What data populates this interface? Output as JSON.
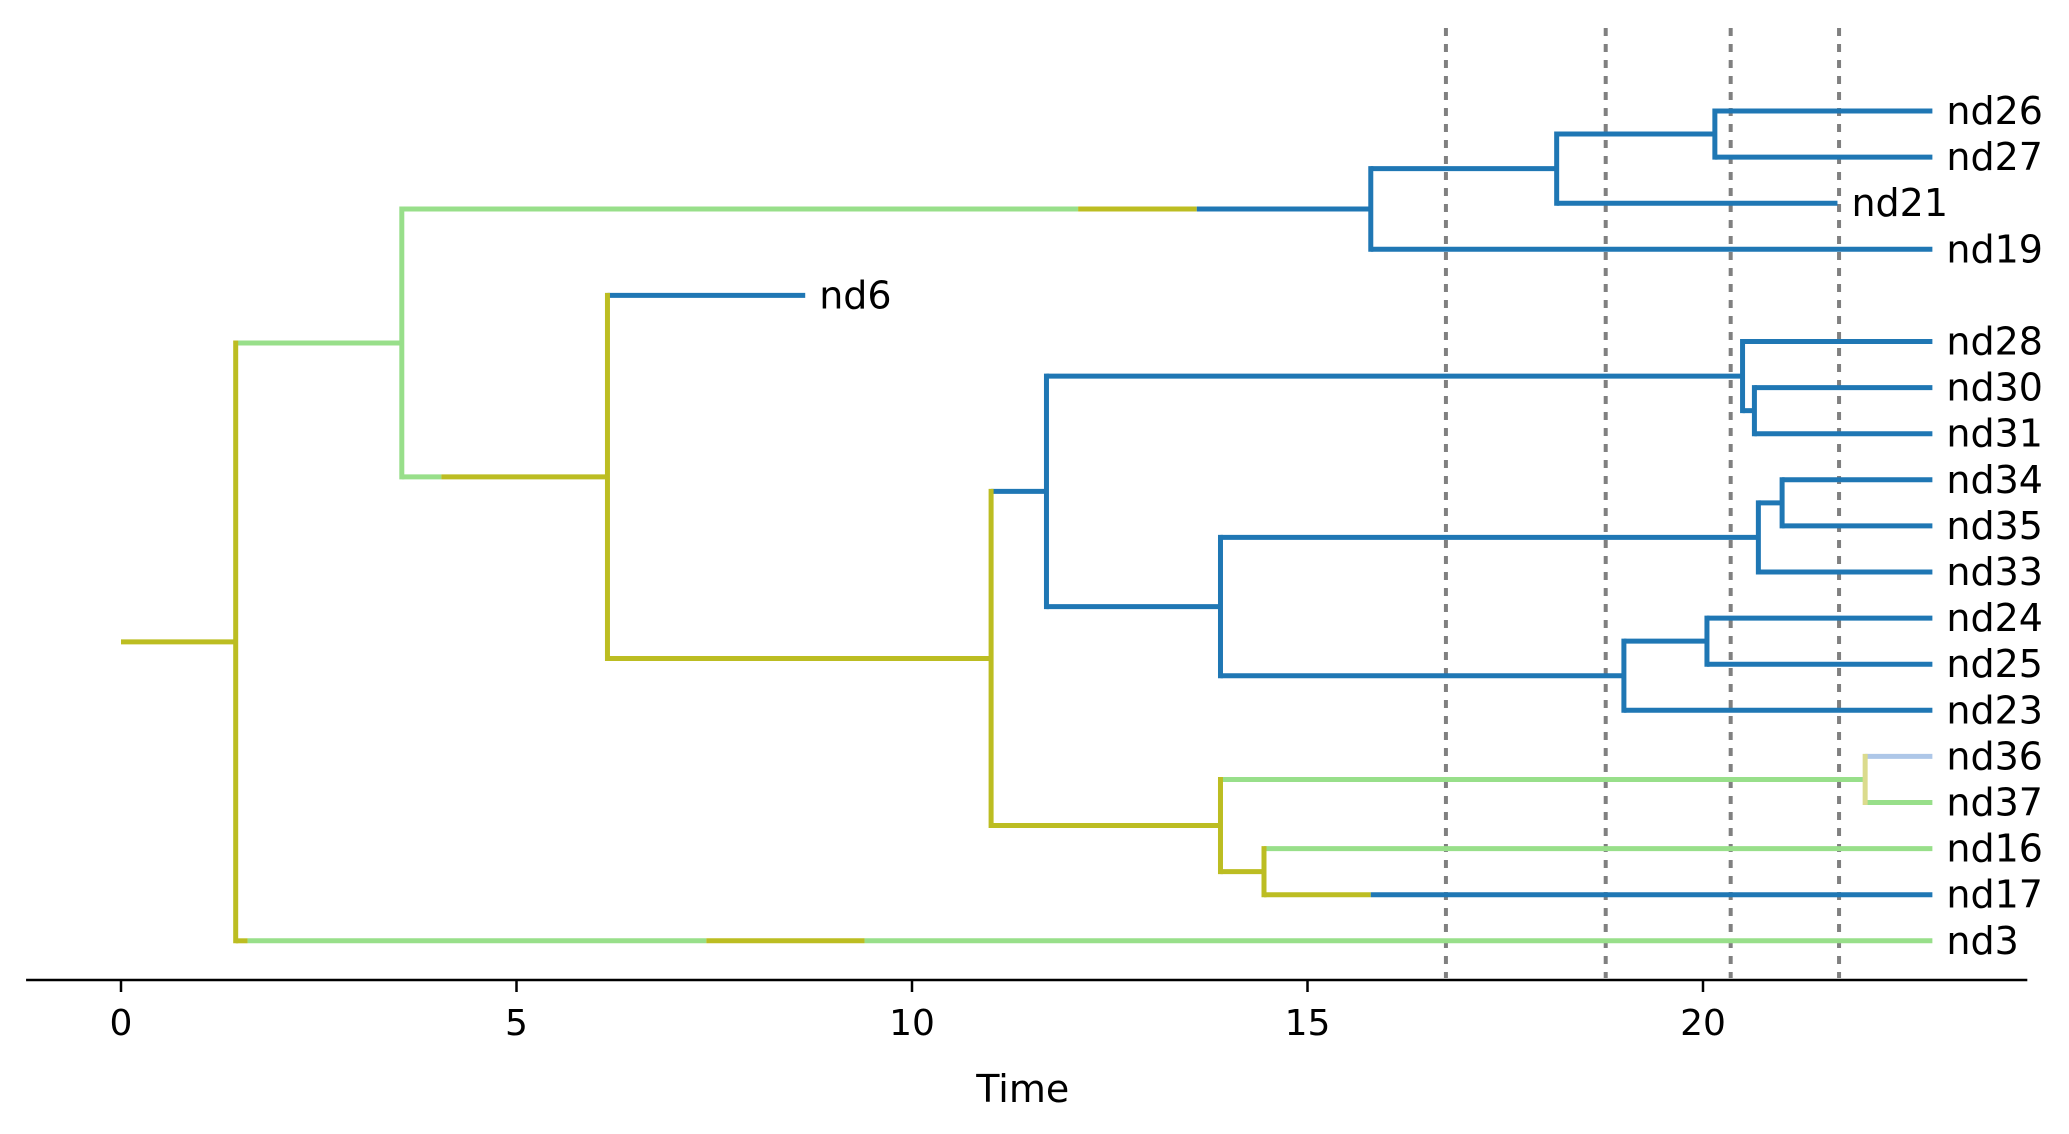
{
  "chart_data": {
    "type": "tree",
    "xlabel": "Time",
    "xlim": [
      -1.2,
      24.1
    ],
    "x_ticks": [
      0,
      5,
      10,
      15,
      20
    ],
    "x_tick_labels": [
      "0",
      "5",
      "10",
      "15",
      "20"
    ],
    "grid": false,
    "colors": {
      "olive": "#bcbd22",
      "light_green": "#98df8a",
      "blue": "#1f77b4",
      "light_blue": "#aec7e8",
      "pale_yellow": "#dbdb8d",
      "ref_line": "#808080"
    },
    "reference_lines": [
      16.75,
      18.77,
      20.35,
      21.72
    ],
    "leaf_order": [
      "nd26",
      "nd27",
      "nd21",
      "nd19",
      "nd6",
      "nd28",
      "nd30",
      "nd31",
      "nd34",
      "nd35",
      "nd33",
      "nd24",
      "nd25",
      "nd23",
      "nd36",
      "nd37",
      "nd16",
      "nd17",
      "nd3"
    ],
    "leaves": [
      {
        "label": "nd26",
        "time": 22.9
      },
      {
        "label": "nd27",
        "time": 22.9
      },
      {
        "label": "nd21",
        "time": 21.7
      },
      {
        "label": "nd19",
        "time": 22.9
      },
      {
        "label": "nd6",
        "time": 8.65
      },
      {
        "label": "nd28",
        "time": 22.9
      },
      {
        "label": "nd30",
        "time": 22.9
      },
      {
        "label": "nd31",
        "time": 22.9
      },
      {
        "label": "nd34",
        "time": 22.9
      },
      {
        "label": "nd35",
        "time": 22.9
      },
      {
        "label": "nd33",
        "time": 22.9
      },
      {
        "label": "nd24",
        "time": 22.9
      },
      {
        "label": "nd25",
        "time": 22.9
      },
      {
        "label": "nd23",
        "time": 22.9
      },
      {
        "label": "nd36",
        "time": 22.9
      },
      {
        "label": "nd37",
        "time": 22.9
      },
      {
        "label": "nd16",
        "time": 22.9
      },
      {
        "label": "nd17",
        "time": 22.9
      },
      {
        "label": "nd3",
        "time": 22.9
      }
    ],
    "nodes": [
      {
        "id": "A",
        "time": 1.45,
        "children": [
          "B",
          "nd3"
        ]
      },
      {
        "id": "B",
        "time": 3.55,
        "children": [
          "C",
          "D"
        ]
      },
      {
        "id": "C",
        "time": 15.8,
        "children": [
          "E",
          "nd19"
        ]
      },
      {
        "id": "E",
        "time": 18.15,
        "children": [
          "F",
          "nd21"
        ]
      },
      {
        "id": "F",
        "time": 20.15,
        "children": [
          "nd26",
          "nd27"
        ]
      },
      {
        "id": "D",
        "time": 6.15,
        "children": [
          "nd6",
          "G"
        ]
      },
      {
        "id": "G",
        "time": 11.0,
        "children": [
          "H",
          "N"
        ]
      },
      {
        "id": "H",
        "time": 11.7,
        "children": [
          "I",
          "K"
        ]
      },
      {
        "id": "I",
        "time": 20.5,
        "children": [
          "nd28",
          "J"
        ]
      },
      {
        "id": "J",
        "time": 20.65,
        "children": [
          "nd30",
          "nd31"
        ]
      },
      {
        "id": "K",
        "time": 13.9,
        "children": [
          "L",
          "M"
        ]
      },
      {
        "id": "L",
        "time": 20.7,
        "children": [
          "L2",
          "nd33"
        ]
      },
      {
        "id": "L2",
        "time": 21.0,
        "children": [
          "nd34",
          "nd35"
        ]
      },
      {
        "id": "M",
        "time": 19.0,
        "children": [
          "M2",
          "nd23"
        ]
      },
      {
        "id": "M2",
        "time": 20.05,
        "children": [
          "nd24",
          "nd25"
        ]
      },
      {
        "id": "N",
        "time": 13.9,
        "children": [
          "O",
          "P"
        ]
      },
      {
        "id": "O",
        "time": 22.05,
        "children": [
          "nd36",
          "nd37"
        ]
      },
      {
        "id": "P",
        "time": 14.45,
        "children": [
          "nd16",
          "nd17"
        ]
      }
    ],
    "root_stem": {
      "from": 0.0,
      "to": 1.45,
      "color": "olive"
    },
    "vertical_colors": {
      "A": "olive",
      "B": "light_green",
      "C": "blue",
      "E": "blue",
      "F": "blue",
      "D": "olive",
      "G": "olive",
      "H": "blue",
      "I": "blue",
      "J": "blue",
      "K": "blue",
      "L": "blue",
      "L2": "blue",
      "M": "blue",
      "M2": "blue",
      "N": "olive",
      "O": "pale_yellow",
      "P": "olive"
    },
    "branch_segments": {
      "B": [
        {
          "to": 3.55,
          "color": "light_green"
        }
      ],
      "nd3": [
        {
          "to": 1.6,
          "color": "olive"
        },
        {
          "to": 7.4,
          "color": "light_green"
        },
        {
          "to": 9.4,
          "color": "olive"
        },
        {
          "to": 22.9,
          "color": "light_green"
        }
      ],
      "C": [
        {
          "to": 12.1,
          "color": "light_green"
        },
        {
          "to": 13.6,
          "color": "olive"
        },
        {
          "to": 15.8,
          "color": "blue"
        }
      ],
      "D": [
        {
          "to": 4.05,
          "color": "light_green"
        },
        {
          "to": 6.15,
          "color": "olive"
        }
      ],
      "E": [
        {
          "to": 18.15,
          "color": "blue"
        }
      ],
      "nd19": [
        {
          "to": 22.9,
          "color": "blue"
        }
      ],
      "F": [
        {
          "to": 20.15,
          "color": "blue"
        }
      ],
      "nd21": [
        {
          "to": 21.7,
          "color": "blue"
        }
      ],
      "nd26": [
        {
          "to": 22.9,
          "color": "blue"
        }
      ],
      "nd27": [
        {
          "to": 22.9,
          "color": "blue"
        }
      ],
      "nd6": [
        {
          "to": 8.65,
          "color": "blue"
        }
      ],
      "G": [
        {
          "to": 11.0,
          "color": "olive"
        }
      ],
      "H": [
        {
          "to": 11.7,
          "color": "blue"
        }
      ],
      "N": [
        {
          "to": 13.9,
          "color": "olive"
        }
      ],
      "I": [
        {
          "to": 20.5,
          "color": "blue"
        }
      ],
      "K": [
        {
          "to": 13.9,
          "color": "blue"
        }
      ],
      "nd28": [
        {
          "to": 22.9,
          "color": "blue"
        }
      ],
      "J": [
        {
          "to": 20.65,
          "color": "blue"
        }
      ],
      "nd30": [
        {
          "to": 22.9,
          "color": "blue"
        }
      ],
      "nd31": [
        {
          "to": 22.9,
          "color": "blue"
        }
      ],
      "L": [
        {
          "to": 20.7,
          "color": "blue"
        }
      ],
      "M": [
        {
          "to": 19.0,
          "color": "blue"
        }
      ],
      "L2": [
        {
          "to": 21.0,
          "color": "blue"
        }
      ],
      "nd33": [
        {
          "to": 22.9,
          "color": "blue"
        }
      ],
      "nd34": [
        {
          "to": 22.9,
          "color": "blue"
        }
      ],
      "nd35": [
        {
          "to": 22.9,
          "color": "blue"
        }
      ],
      "M2": [
        {
          "to": 20.05,
          "color": "blue"
        }
      ],
      "nd23": [
        {
          "to": 22.9,
          "color": "blue"
        }
      ],
      "nd24": [
        {
          "to": 22.9,
          "color": "blue"
        }
      ],
      "nd25": [
        {
          "to": 22.9,
          "color": "blue"
        }
      ],
      "O": [
        {
          "to": 22.05,
          "color": "light_green"
        }
      ],
      "P": [
        {
          "to": 14.45,
          "color": "olive"
        }
      ],
      "nd36": [
        {
          "to": 22.9,
          "color": "light_blue"
        }
      ],
      "nd37": [
        {
          "to": 22.9,
          "color": "light_green"
        }
      ],
      "nd16": [
        {
          "to": 22.9,
          "color": "light_green"
        }
      ],
      "nd17": [
        {
          "to": 15.8,
          "color": "olive"
        },
        {
          "to": 22.9,
          "color": "blue"
        }
      ]
    }
  }
}
